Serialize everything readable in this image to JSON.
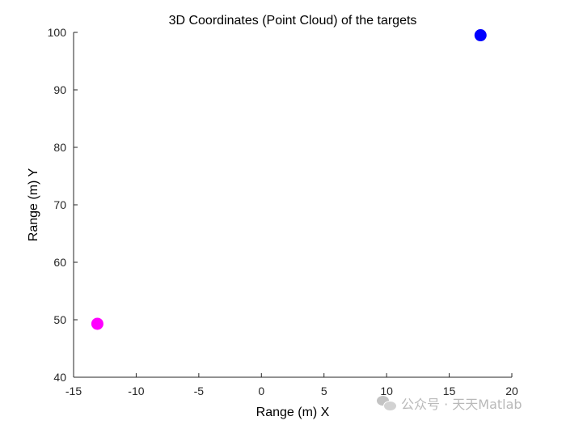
{
  "chart_data": {
    "type": "scatter",
    "title": "3D Coordinates (Point Cloud) of the targets",
    "xlabel": "Range (m) X",
    "ylabel": "Range (m) Y",
    "xlim": [
      -15,
      20
    ],
    "ylim": [
      40,
      100
    ],
    "xticks": [
      -15,
      -10,
      -5,
      0,
      5,
      10,
      15,
      20
    ],
    "yticks": [
      40,
      50,
      60,
      70,
      80,
      90,
      100
    ],
    "grid": false,
    "points": [
      {
        "x": -13.1,
        "y": 49.3,
        "color": "#ff00ff"
      },
      {
        "x": 17.5,
        "y": 99.5,
        "color": "#0000ff"
      }
    ]
  },
  "watermark": {
    "icon": "wechat-icon",
    "text": "公众号 · 天天Matlab"
  }
}
